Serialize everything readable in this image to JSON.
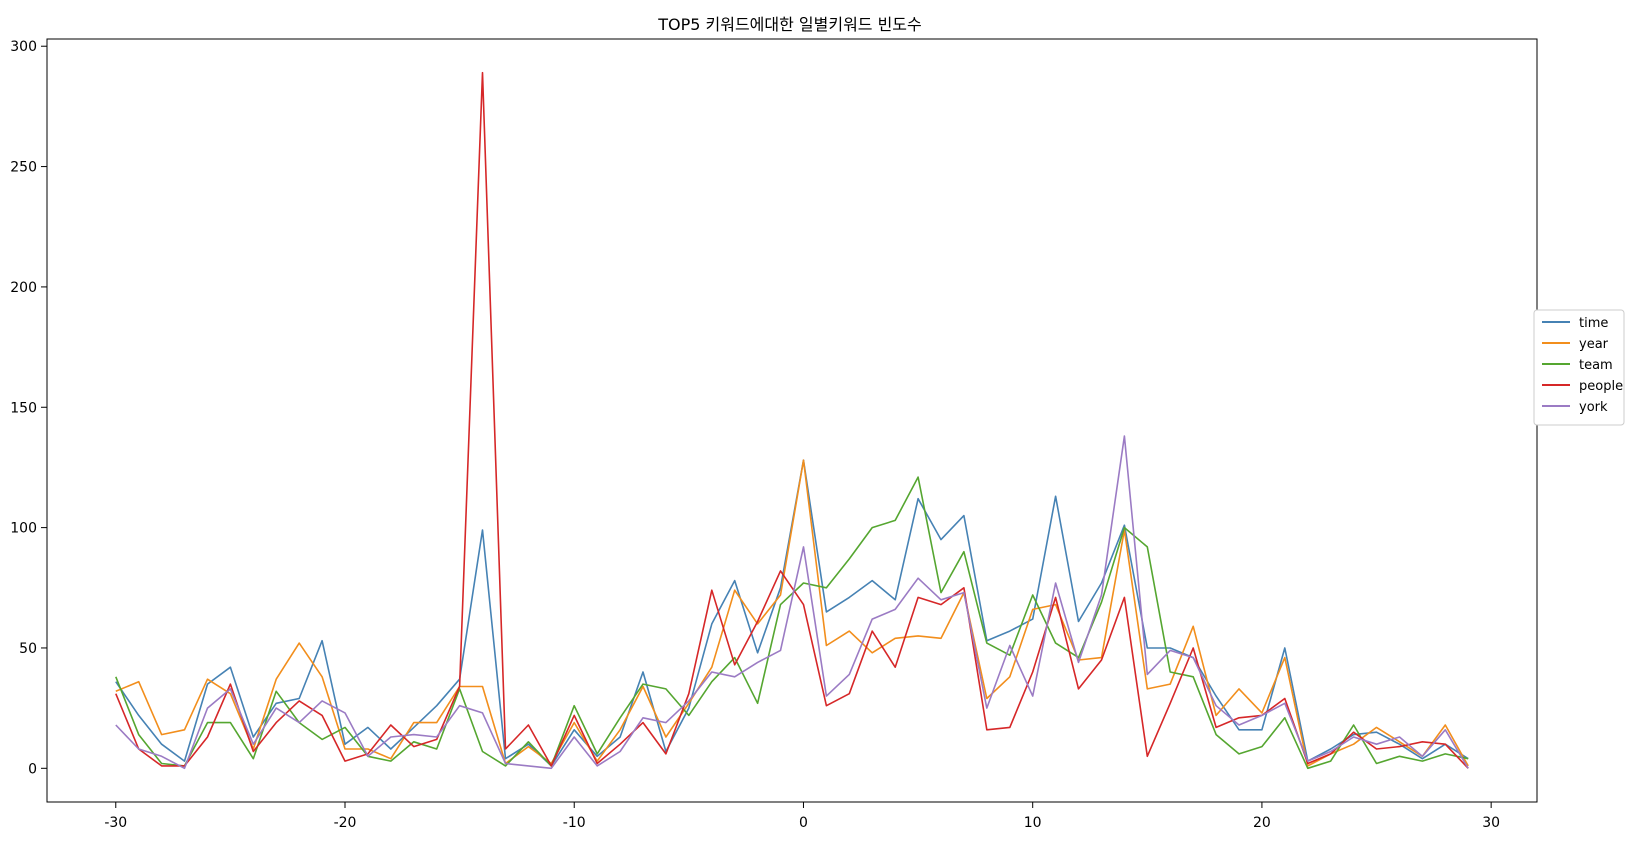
{
  "chart_data": {
    "type": "line",
    "title": "TOP5 키워드에대한 일별키워드 빈도수",
    "xlabel": "",
    "ylabel": "",
    "xlim": [
      -33,
      32
    ],
    "ylim": [
      -14,
      303
    ],
    "xticks": [
      -30,
      -20,
      -10,
      0,
      10,
      20,
      30
    ],
    "yticks": [
      0,
      50,
      100,
      150,
      200,
      250,
      300
    ],
    "grid": false,
    "legend_position": "right, outside axes",
    "x": [
      -30,
      -29,
      -28,
      -27,
      -26,
      -25,
      -24,
      -23,
      -22,
      -21,
      -20,
      -19,
      -18,
      -17,
      -16,
      -15,
      -14,
      -13,
      -12,
      -11,
      -10,
      -9,
      -8,
      -7,
      -6,
      -5,
      -4,
      -3,
      -2,
      -1,
      0,
      1,
      2,
      3,
      4,
      5,
      6,
      7,
      8,
      9,
      10,
      11,
      12,
      13,
      14,
      15,
      16,
      17,
      18,
      19,
      20,
      21,
      22,
      23,
      24,
      25,
      26,
      27,
      28,
      29
    ],
    "series": [
      {
        "name": "time",
        "color": "#4682b4",
        "values": [
          36,
          22,
          10,
          3,
          35,
          42,
          13,
          27,
          29,
          53,
          10,
          17,
          8,
          17,
          26,
          37,
          99,
          4,
          10,
          1,
          16,
          5,
          13,
          40,
          7,
          25,
          60,
          78,
          48,
          75,
          128,
          65,
          71,
          78,
          70,
          112,
          95,
          105,
          53,
          57,
          62,
          113,
          61,
          77,
          101,
          50,
          50,
          46,
          30,
          16,
          16,
          50,
          3,
          8,
          14,
          15,
          10,
          4,
          10,
          4
        ]
      },
      {
        "name": "year",
        "color": "#f28e1c",
        "values": [
          32,
          36,
          14,
          16,
          37,
          31,
          8,
          37,
          52,
          38,
          8,
          8,
          4,
          19,
          19,
          34,
          34,
          2,
          9,
          2,
          19,
          3,
          16,
          34,
          13,
          27,
          42,
          74,
          60,
          72,
          128,
          51,
          57,
          48,
          54,
          55,
          54,
          73,
          29,
          38,
          66,
          68,
          45,
          46,
          99,
          33,
          35,
          59,
          22,
          33,
          23,
          46,
          1,
          6,
          10,
          17,
          11,
          5,
          18,
          1
        ]
      },
      {
        "name": "team",
        "color": "#55a630",
        "values": [
          38,
          14,
          2,
          1,
          19,
          19,
          4,
          32,
          19,
          12,
          17,
          5,
          3,
          11,
          8,
          33,
          7,
          1,
          11,
          1,
          26,
          6,
          21,
          35,
          33,
          22,
          36,
          46,
          27,
          68,
          77,
          75,
          87,
          100,
          103,
          121,
          73,
          90,
          52,
          47,
          72,
          52,
          46,
          69,
          100,
          92,
          40,
          38,
          14,
          6,
          9,
          21,
          0,
          3,
          18,
          2,
          5,
          3,
          6,
          4
        ]
      },
      {
        "name": "people",
        "color": "#d62728",
        "values": [
          31,
          8,
          1,
          1,
          13,
          35,
          7,
          19,
          28,
          22,
          3,
          6,
          18,
          9,
          12,
          34,
          289,
          8,
          18,
          1,
          22,
          2,
          10,
          19,
          6,
          31,
          74,
          43,
          61,
          82,
          68,
          26,
          31,
          57,
          42,
          71,
          68,
          75,
          16,
          17,
          40,
          71,
          33,
          45,
          71,
          5,
          27,
          50,
          17,
          21,
          22,
          29,
          2,
          6,
          15,
          8,
          9,
          11,
          10,
          0
        ]
      },
      {
        "name": "york",
        "color": "#9b7bc4",
        "values": [
          18,
          8,
          5,
          0,
          25,
          33,
          10,
          25,
          19,
          28,
          23,
          5,
          13,
          14,
          13,
          26,
          23,
          2,
          1,
          0,
          13,
          1,
          7,
          21,
          19,
          28,
          40,
          38,
          44,
          49,
          92,
          30,
          39,
          62,
          66,
          79,
          70,
          73,
          25,
          51,
          30,
          77,
          44,
          72,
          138,
          39,
          49,
          46,
          26,
          18,
          22,
          27,
          3,
          7,
          13,
          10,
          13,
          5,
          16,
          0
        ]
      }
    ]
  }
}
